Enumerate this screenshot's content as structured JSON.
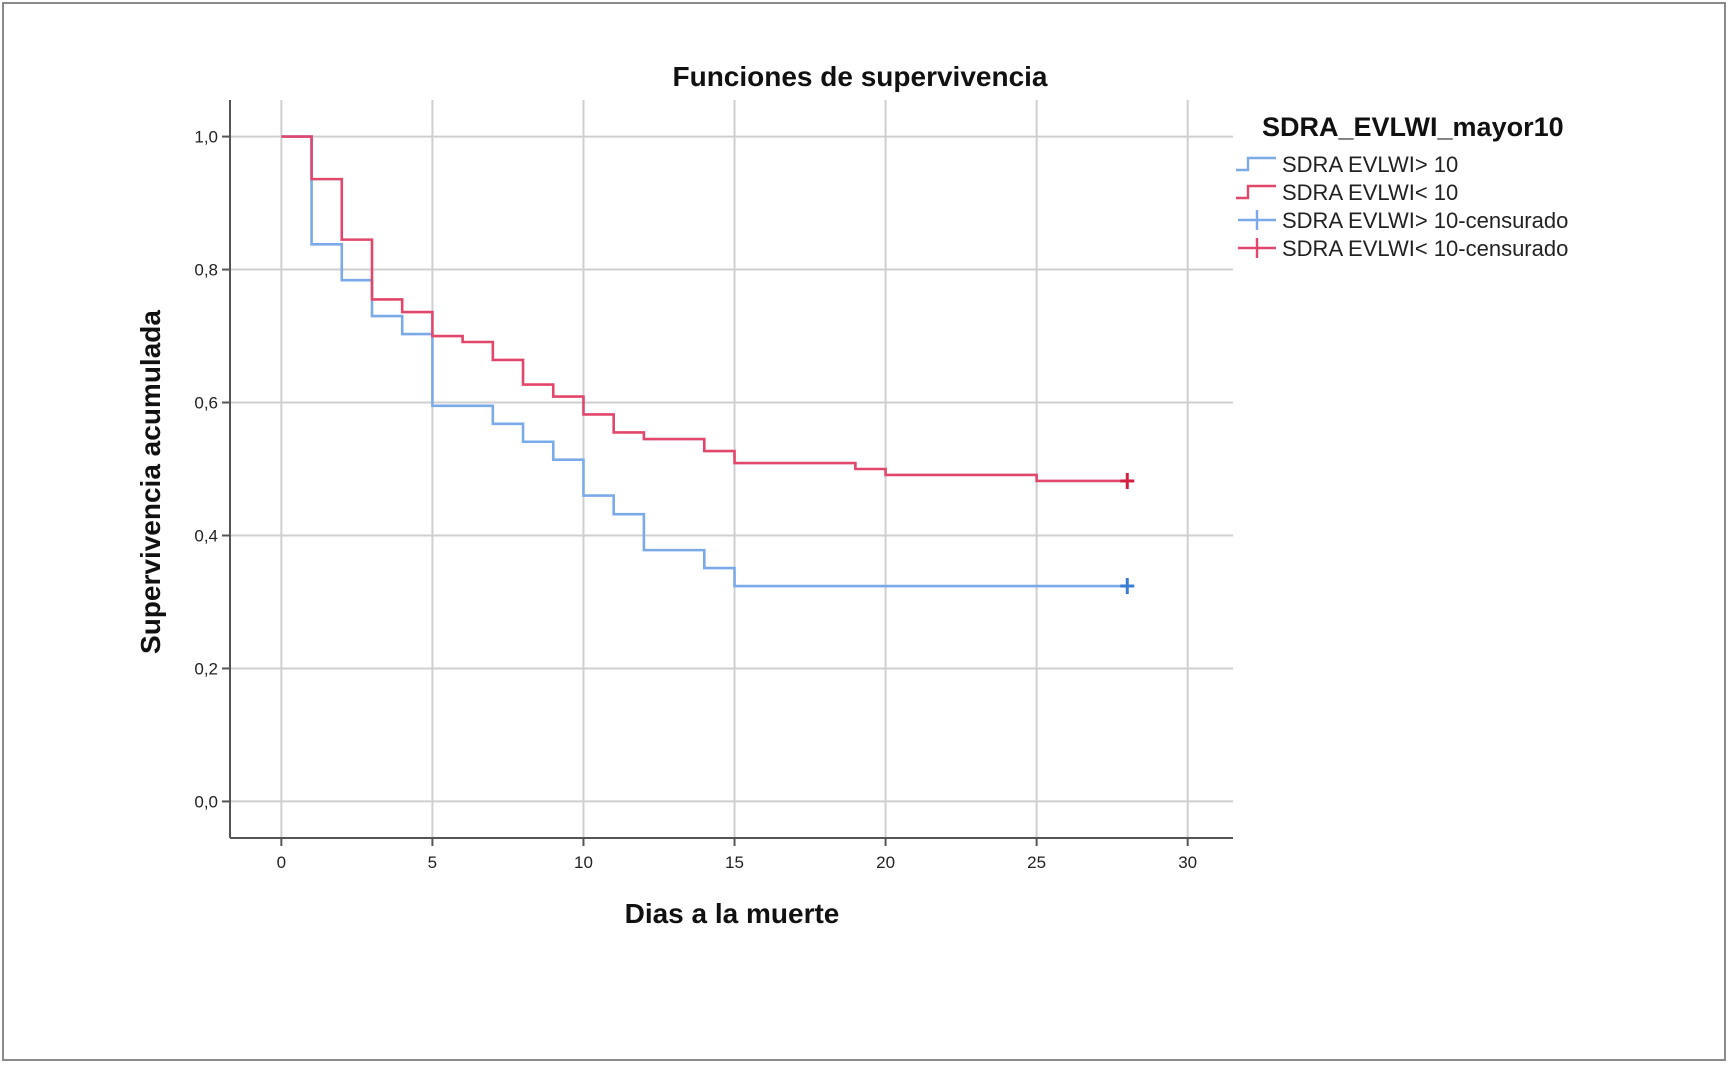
{
  "chart_data": {
    "type": "line",
    "step": true,
    "title": "Funciones de supervivencia",
    "xlabel": "Dias a la muerte",
    "ylabel": "Supervivencia acumulada",
    "xlim": [
      -1.7,
      31.5
    ],
    "ylim": [
      -0.055,
      1.055
    ],
    "xticks": [
      0,
      5,
      10,
      15,
      20,
      25,
      30
    ],
    "xtick_labels": [
      "0",
      "5",
      "10",
      "15",
      "20",
      "25",
      "30"
    ],
    "yticks": [
      0.0,
      0.2,
      0.4,
      0.6,
      0.8,
      1.0
    ],
    "ytick_labels": [
      "0,0",
      "0,2",
      "0,4",
      "0,6",
      "0,8",
      "1,0"
    ],
    "grid": true,
    "legend": {
      "title": "SDRA_EVLWI_mayor10",
      "placement": "right",
      "entries": [
        {
          "label": "SDRA EVLWI> 10",
          "kind": "line",
          "color": "#7aaae8"
        },
        {
          "label": "SDRA EVLWI< 10",
          "kind": "line",
          "color": "#e0476b"
        },
        {
          "label": "SDRA EVLWI> 10-censurado",
          "kind": "censor",
          "color": "#7aaae8"
        },
        {
          "label": "SDRA EVLWI< 10-censurado",
          "kind": "censor",
          "color": "#e0476b"
        }
      ]
    },
    "series": [
      {
        "label": "SDRA EVLWI> 10",
        "color": "#7aaae8",
        "censor_color": "#3a7bd5",
        "x": [
          0,
          1,
          2,
          3,
          4,
          5,
          7,
          8,
          9,
          10,
          11,
          12,
          14,
          15,
          28
        ],
        "y": [
          1.0,
          0.838,
          0.784,
          0.73,
          0.703,
          0.595,
          0.568,
          0.541,
          0.514,
          0.46,
          0.432,
          0.378,
          0.351,
          0.324,
          0.324
        ],
        "censored": [
          {
            "x": 28,
            "y": 0.324
          }
        ]
      },
      {
        "label": "SDRA EVLWI< 10",
        "color": "#e0476b",
        "censor_color": "#d42040",
        "x": [
          0,
          1,
          2,
          3,
          4,
          5,
          6,
          7,
          8,
          9,
          10,
          11,
          12,
          14,
          15,
          19,
          20,
          25,
          28
        ],
        "y": [
          1.0,
          0.936,
          0.845,
          0.755,
          0.736,
          0.7,
          0.691,
          0.664,
          0.627,
          0.609,
          0.582,
          0.555,
          0.545,
          0.527,
          0.509,
          0.5,
          0.491,
          0.482,
          0.482
        ],
        "censored": [
          {
            "x": 28,
            "y": 0.482
          }
        ]
      }
    ]
  }
}
